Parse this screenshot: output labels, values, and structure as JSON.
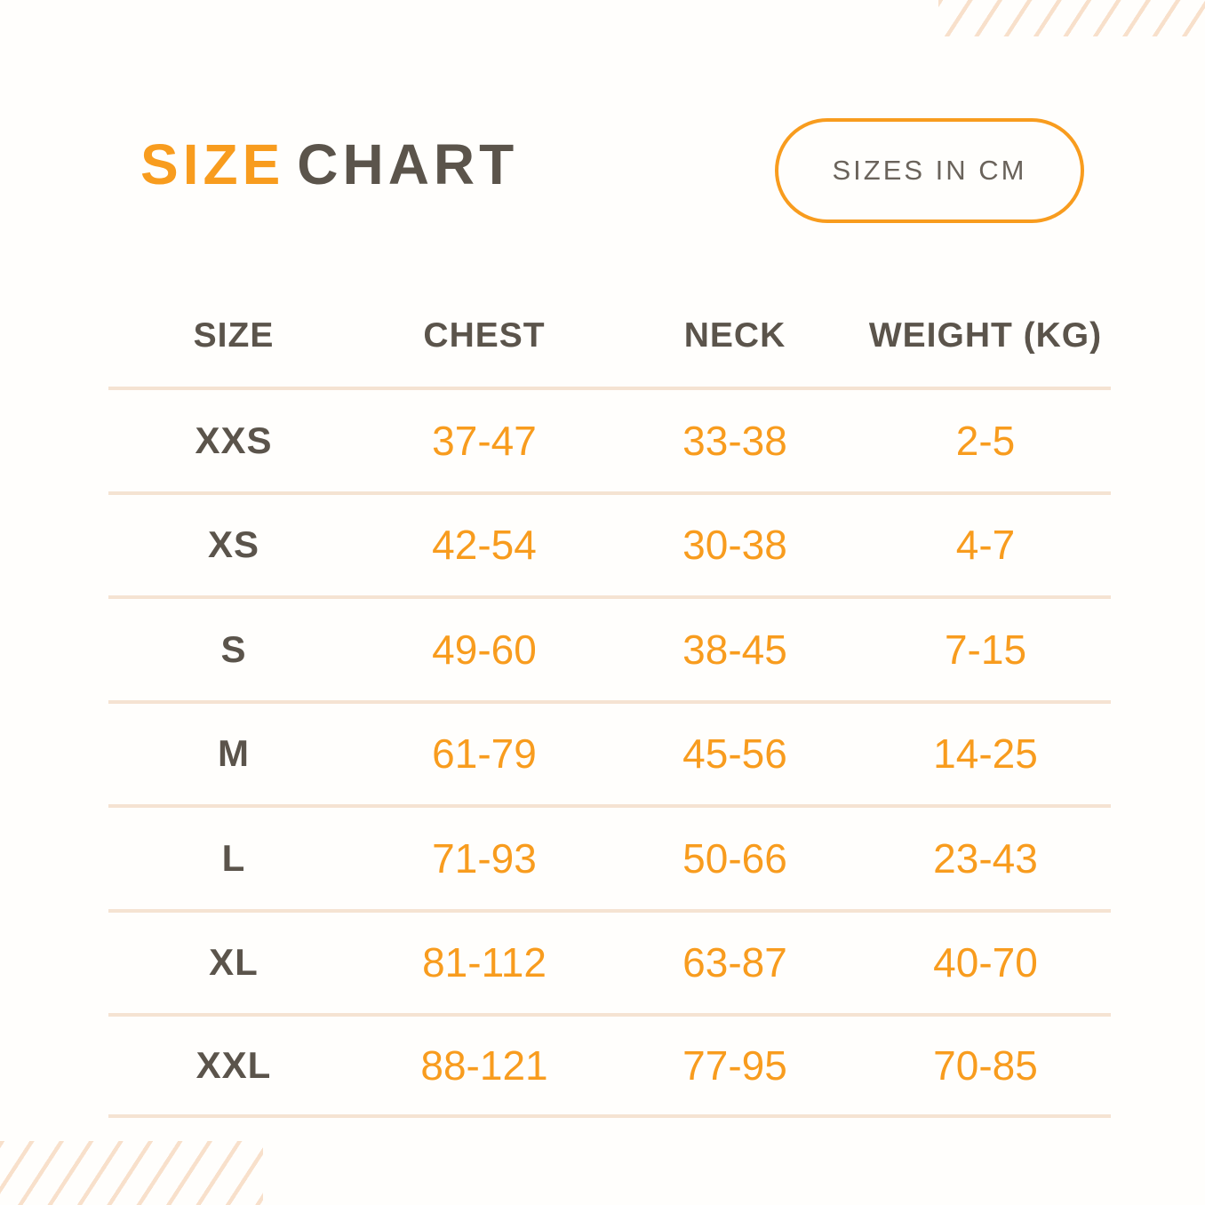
{
  "theme": {
    "bg": "#fffefc",
    "accent": "#f89c1e",
    "dark": "#5b544b",
    "gray": "#6a635b",
    "line": "#f5e3d2",
    "hatch": "#f8e0cb"
  },
  "header": {
    "title_primary": "SIZE",
    "title_secondary": "CHART",
    "badge_label": "SIZES IN CM"
  },
  "chart_data": {
    "type": "table",
    "title": "SIZE CHART",
    "unit_note": "SIZES IN CM",
    "columns": [
      "SIZE",
      "CHEST",
      "NECK",
      "WEIGHT (KG)"
    ],
    "rows": [
      [
        "XXS",
        "37-47",
        "33-38",
        "2-5"
      ],
      [
        "XS",
        "42-54",
        "30-38",
        "4-7"
      ],
      [
        "S",
        "49-60",
        "38-45",
        "7-15"
      ],
      [
        "M",
        "61-79",
        "45-56",
        "14-25"
      ],
      [
        "L",
        "71-93",
        "50-66",
        "23-43"
      ],
      [
        "XL",
        "81-112",
        "63-87",
        "40-70"
      ],
      [
        "XXL",
        "88-121",
        "77-95",
        "70-85"
      ]
    ]
  }
}
